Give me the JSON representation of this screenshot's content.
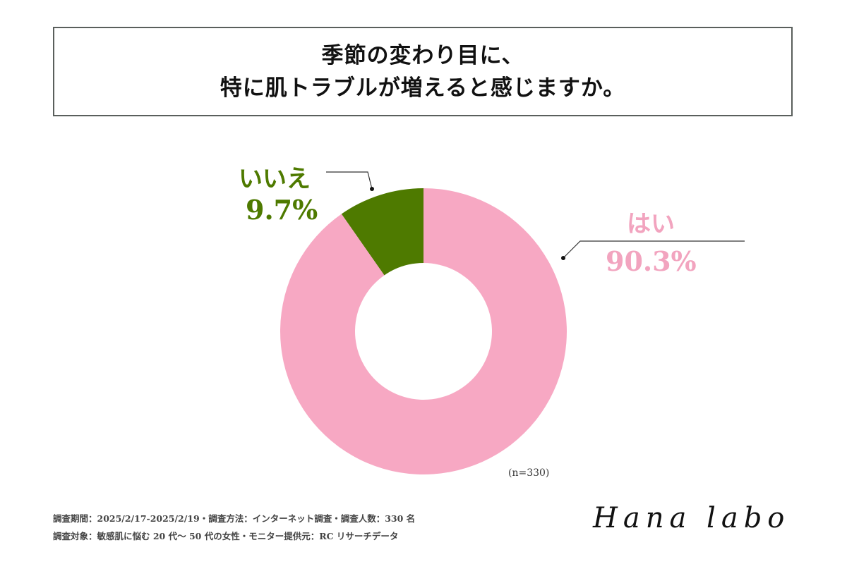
{
  "title": {
    "line1": "季節の変わり目に、",
    "line2": "特に肌トラブルが増えると感じますか。"
  },
  "chart_data": {
    "type": "pie",
    "donut": true,
    "title": "季節の変わり目に、特に肌トラブルが増えると感じますか。",
    "categories": [
      "いいえ",
      "はい"
    ],
    "values": [
      9.7,
      90.3
    ],
    "value_labels": [
      "9.7%",
      "90.3%"
    ],
    "colors": [
      "#4e7a00",
      "#f7a8c3"
    ],
    "start": "12 o'clock, counter-clockwise for いいえ",
    "note": "(n=330)"
  },
  "footer": {
    "line1": "調査期間：2025/2/17-2025/2/19・調査方法：インターネット調査・調査人数：330 名",
    "line2": "調査対象：敏感肌に悩む 20 代〜 50 代の女性・モニター提供元：RC リサーチデータ"
  },
  "logo": "Hana labo"
}
